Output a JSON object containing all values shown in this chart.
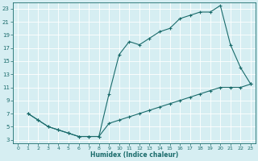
{
  "xlabel": "Humidex (Indice chaleur)",
  "bg_color": "#d6eef2",
  "grid_color": "#ffffff",
  "line_color": "#1a6b6b",
  "xlim": [
    -0.5,
    23.5
  ],
  "ylim": [
    2.5,
    24
  ],
  "xticks": [
    0,
    1,
    2,
    3,
    4,
    5,
    6,
    7,
    8,
    9,
    10,
    11,
    12,
    13,
    14,
    15,
    16,
    17,
    18,
    19,
    20,
    21,
    22,
    23
  ],
  "yticks": [
    3,
    5,
    7,
    9,
    11,
    13,
    15,
    17,
    19,
    21,
    23
  ],
  "curve1_x": [
    1,
    2,
    3,
    4,
    5,
    6,
    7,
    8,
    9,
    10,
    11,
    12,
    13,
    14,
    15,
    16,
    17,
    18,
    19,
    20,
    21,
    22,
    23
  ],
  "curve1_y": [
    7,
    6,
    5,
    4.5,
    4,
    3.5,
    3.5,
    3.5,
    10,
    16,
    18,
    17.5,
    18.5,
    19.5,
    20,
    21.5,
    22,
    22.5,
    22.5,
    23.5,
    17.5,
    14,
    11.5
  ],
  "curve2_x": [
    1,
    2,
    3,
    4,
    5,
    6,
    7,
    8,
    9,
    10,
    11,
    12,
    13,
    14,
    15,
    16,
    17,
    18,
    19,
    20,
    21,
    22,
    23
  ],
  "curve2_y": [
    7,
    6,
    5,
    4.5,
    4,
    3.5,
    3.5,
    3.5,
    5.5,
    6,
    6.5,
    7,
    7.5,
    8,
    8.5,
    9,
    9.5,
    10,
    10.5,
    11,
    11,
    11,
    11.5
  ]
}
